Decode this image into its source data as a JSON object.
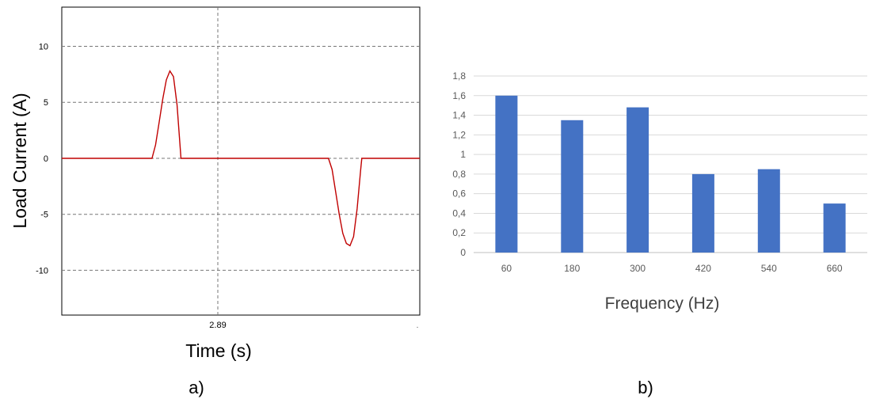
{
  "chart_data": [
    {
      "panel_label": "a)",
      "type": "line",
      "xlabel": "Time (s)",
      "ylabel": "Load Current (A)",
      "ylim": [
        -14,
        13.5
      ],
      "yticks": [
        10,
        5,
        0,
        -5,
        -10
      ],
      "ytick_labels": [
        "10",
        "5",
        "0",
        "-5",
        "-10"
      ],
      "xtick_labels": [
        "2.89"
      ],
      "grid": "dashed",
      "line_color": "#c00000",
      "series": [
        {
          "values": [
            [
              0,
              0
            ],
            [
              0.252,
              0
            ],
            [
              0.262,
              1.2
            ],
            [
              0.272,
              3.2
            ],
            [
              0.282,
              5.3
            ],
            [
              0.292,
              7.0
            ],
            [
              0.302,
              7.8
            ],
            [
              0.312,
              7.3
            ],
            [
              0.322,
              4.8
            ],
            [
              0.333,
              0
            ],
            [
              0.368,
              0
            ],
            [
              0.745,
              0
            ],
            [
              0.755,
              -1.0
            ],
            [
              0.765,
              -3.0
            ],
            [
              0.775,
              -5.0
            ],
            [
              0.785,
              -6.7
            ],
            [
              0.795,
              -7.6
            ],
            [
              0.805,
              -7.8
            ],
            [
              0.815,
              -7.0
            ],
            [
              0.825,
              -4.5
            ],
            [
              0.835,
              -1.0
            ],
            [
              0.838,
              0
            ],
            [
              1,
              0
            ]
          ]
        }
      ]
    },
    {
      "panel_label": "b)",
      "type": "bar",
      "xlabel": "Frequency (Hz)",
      "ylabel": "",
      "ylim": [
        0,
        1.8
      ],
      "ytick_labels": [
        "0",
        "0,2",
        "0,4",
        "0,6",
        "0,8",
        "1",
        "1,2",
        "1,4",
        "1,6",
        "1,8"
      ],
      "categories": [
        "60",
        "180",
        "300",
        "420",
        "540",
        "660"
      ],
      "values": [
        1.6,
        1.35,
        1.48,
        0.8,
        0.85,
        0.5
      ],
      "bar_color": "#4472c4",
      "grid": "horizontal"
    }
  ]
}
